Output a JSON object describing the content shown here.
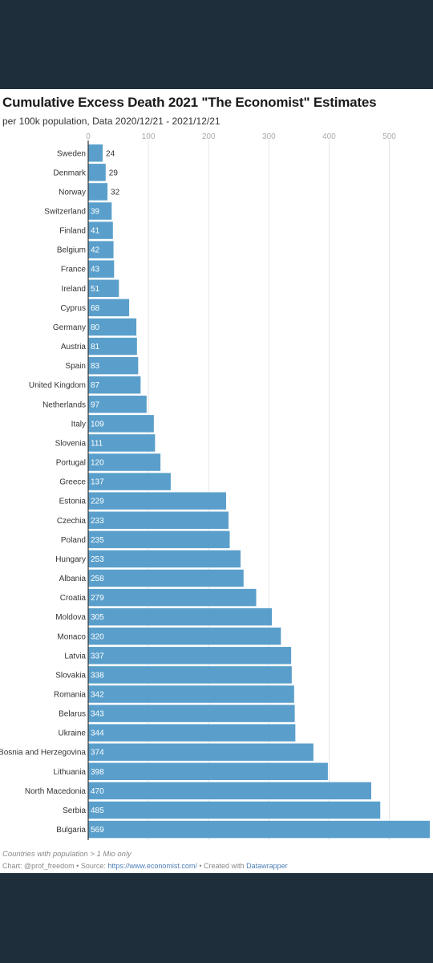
{
  "chart_data": {
    "type": "bar",
    "orientation": "horizontal",
    "title": "Cumulative Excess Death 2021 \"The Economist\" Estimates",
    "subtitle": "per 100k population, Data 2020/12/21 - 2021/12/21",
    "xlim": [
      0,
      569
    ],
    "ticks": [
      0,
      100,
      200,
      300,
      400,
      500
    ],
    "grid": true,
    "bar_color": "#5a9fcb",
    "categories": [
      "Sweden",
      "Denmark",
      "Norway",
      "Switzerland",
      "Finland",
      "Belgium",
      "France",
      "Ireland",
      "Cyprus",
      "Germany",
      "Austria",
      "Spain",
      "United Kingdom",
      "Netherlands",
      "Italy",
      "Slovenia",
      "Portugal",
      "Greece",
      "Estonia",
      "Czechia",
      "Poland",
      "Hungary",
      "Albania",
      "Croatia",
      "Moldova",
      "Monaco",
      "Latvia",
      "Slovakia",
      "Romania",
      "Belarus",
      "Ukraine",
      "Bosnia and Herzegovina",
      "Lithuania",
      "North Macedonia",
      "Serbia",
      "Bulgaria"
    ],
    "values": [
      24,
      29,
      32,
      39,
      41,
      42,
      43,
      51,
      68,
      80,
      81,
      83,
      87,
      97,
      109,
      111,
      120,
      137,
      229,
      233,
      235,
      253,
      258,
      279,
      305,
      320,
      337,
      338,
      342,
      343,
      344,
      374,
      398,
      470,
      485,
      569
    ]
  },
  "footer": {
    "note": "Countries with population > 1 Mio only",
    "credit_prefix": "Chart: @prof_freedom • Source: ",
    "source_link": "https://www.economist.com/",
    "credit_middle": " • Created with ",
    "tool_link": "Datawrapper"
  }
}
